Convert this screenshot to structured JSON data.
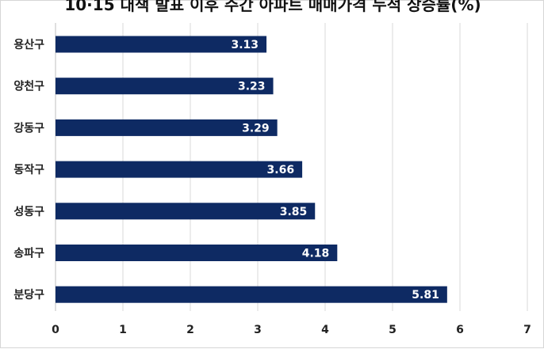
{
  "chart_data": {
    "type": "bar",
    "orientation": "horizontal",
    "title": "10·15 대책 발표 이후 주간 아파트 매매가격 누적 상승률(%)",
    "categories": [
      "용산구",
      "양천구",
      "강동구",
      "동작구",
      "성동구",
      "송파구",
      "분당구"
    ],
    "values": [
      3.13,
      3.23,
      3.29,
      3.66,
      3.85,
      4.18,
      5.81
    ],
    "xlim": [
      0,
      7
    ],
    "x_ticks": [
      0,
      1,
      2,
      3,
      4,
      5,
      6,
      7
    ],
    "grid": "vertical",
    "legend": "none",
    "colors": {
      "bar": "#0e2a63",
      "grid": "#d9d9d9",
      "axis": "#bfbfbf",
      "label_text": "#ffffff"
    }
  }
}
